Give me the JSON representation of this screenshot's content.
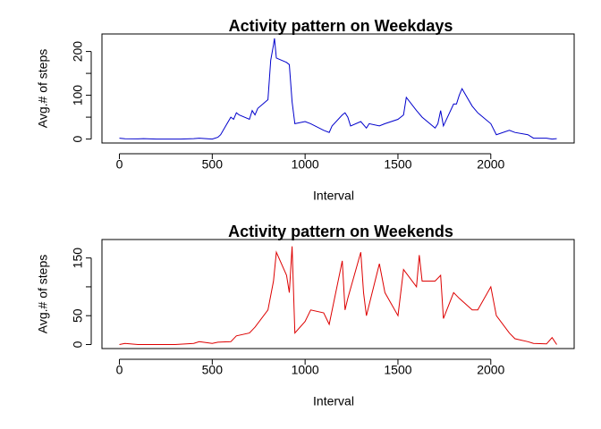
{
  "chart_data": [
    {
      "type": "line",
      "title": "Activity pattern on Weekdays",
      "x_label": "Interval",
      "y_label": "Avg.# of steps",
      "x": [
        0,
        30,
        100,
        130,
        200,
        230,
        300,
        330,
        400,
        430,
        500,
        530,
        545,
        600,
        615,
        630,
        645,
        700,
        715,
        730,
        745,
        800,
        815,
        830,
        835,
        845,
        900,
        915,
        930,
        945,
        1000,
        1030,
        1100,
        1130,
        1145,
        1200,
        1215,
        1230,
        1245,
        1300,
        1330,
        1345,
        1400,
        1430,
        1500,
        1530,
        1545,
        1600,
        1630,
        1700,
        1715,
        1730,
        1745,
        1800,
        1815,
        1830,
        1845,
        1900,
        1930,
        2000,
        2030,
        2100,
        2130,
        2200,
        2230,
        2300,
        2330,
        2355
      ],
      "series": [
        {
          "name": "Weekdays",
          "color": "#0000cc",
          "values": [
            2,
            0.5,
            0.4,
            1,
            0,
            0,
            0,
            0,
            1,
            2,
            0,
            4,
            10,
            50,
            45,
            60,
            55,
            45,
            65,
            55,
            70,
            90,
            180,
            215,
            230,
            185,
            175,
            170,
            85,
            35,
            40,
            35,
            20,
            15,
            30,
            55,
            60,
            50,
            30,
            40,
            25,
            35,
            30,
            35,
            45,
            55,
            95,
            65,
            50,
            25,
            35,
            65,
            30,
            80,
            80,
            100,
            115,
            75,
            60,
            35,
            10,
            20,
            15,
            10,
            2,
            2,
            0,
            1
          ]
        }
      ],
      "xlim": [
        -94,
        2449
      ],
      "xticks": [
        0,
        500,
        1000,
        1500,
        2000
      ],
      "ylim": [
        -9,
        240
      ],
      "yticks": [
        0,
        100,
        200
      ],
      "yminor": [
        50,
        150
      ]
    },
    {
      "type": "line",
      "title": "Activity pattern on Weekends",
      "x_label": "Interval",
      "y_label": "Avg.# of steps",
      "x": [
        0,
        30,
        100,
        200,
        300,
        400,
        430,
        500,
        530,
        600,
        630,
        700,
        730,
        800,
        830,
        845,
        900,
        915,
        930,
        945,
        1000,
        1030,
        1100,
        1130,
        1200,
        1215,
        1230,
        1300,
        1315,
        1330,
        1400,
        1430,
        1500,
        1530,
        1600,
        1615,
        1630,
        1700,
        1730,
        1745,
        1800,
        1830,
        1900,
        1930,
        2000,
        2030,
        2100,
        2130,
        2200,
        2230,
        2300,
        2330,
        2355
      ],
      "series": [
        {
          "name": "Weekends",
          "color": "#dd0000",
          "values": [
            0,
            2,
            0,
            0,
            0,
            2,
            5,
            2,
            4,
            5,
            15,
            20,
            30,
            60,
            110,
            160,
            120,
            90,
            170,
            20,
            40,
            60,
            55,
            35,
            145,
            60,
            80,
            160,
            90,
            50,
            140,
            90,
            50,
            130,
            100,
            155,
            110,
            110,
            120,
            45,
            90,
            80,
            60,
            60,
            100,
            50,
            20,
            10,
            5,
            2,
            1,
            12,
            0
          ]
        }
      ],
      "xlim": [
        -94,
        2449
      ],
      "xticks": [
        0,
        500,
        1000,
        1500,
        2000
      ],
      "ylim": [
        -7,
        182
      ],
      "yticks": [
        0,
        50,
        150
      ],
      "yminor": [
        100
      ]
    }
  ]
}
